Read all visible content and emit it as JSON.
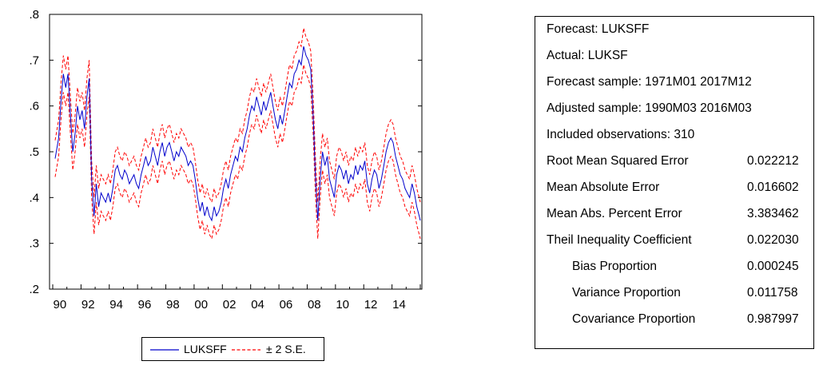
{
  "chart_data": {
    "type": "line",
    "xlim": [
      1990.0,
      2016.0
    ],
    "ylim": [
      0.2,
      0.8
    ],
    "y_ticks": [
      ".2",
      ".3",
      ".4",
      ".5",
      ".6",
      ".7",
      ".8"
    ],
    "x_ticks": [
      "90",
      "92",
      "94",
      "96",
      "98",
      "00",
      "02",
      "04",
      "06",
      "08",
      "10",
      "12",
      "14"
    ],
    "grid": false,
    "legend_position": "bottom",
    "series": [
      {
        "name": "LUKSFF",
        "color": "#0000cc",
        "style": "solid",
        "points": [
          [
            1990.17,
            0.485
          ],
          [
            1990.42,
            0.53
          ],
          [
            1990.58,
            0.61
          ],
          [
            1990.75,
            0.67
          ],
          [
            1990.92,
            0.64
          ],
          [
            1991.08,
            0.67
          ],
          [
            1991.25,
            0.58
          ],
          [
            1991.42,
            0.5
          ],
          [
            1991.58,
            0.54
          ],
          [
            1991.75,
            0.6
          ],
          [
            1991.92,
            0.57
          ],
          [
            1992.08,
            0.59
          ],
          [
            1992.25,
            0.55
          ],
          [
            1992.42,
            0.62
          ],
          [
            1992.58,
            0.66
          ],
          [
            1992.75,
            0.44
          ],
          [
            1992.92,
            0.36
          ],
          [
            1993.08,
            0.43
          ],
          [
            1993.25,
            0.38
          ],
          [
            1993.42,
            0.41
          ],
          [
            1993.58,
            0.4
          ],
          [
            1993.75,
            0.39
          ],
          [
            1993.92,
            0.41
          ],
          [
            1994.08,
            0.39
          ],
          [
            1994.25,
            0.42
          ],
          [
            1994.42,
            0.46
          ],
          [
            1994.58,
            0.47
          ],
          [
            1994.75,
            0.45
          ],
          [
            1994.92,
            0.44
          ],
          [
            1995.08,
            0.46
          ],
          [
            1995.25,
            0.45
          ],
          [
            1995.42,
            0.43
          ],
          [
            1995.58,
            0.44
          ],
          [
            1995.75,
            0.45
          ],
          [
            1995.92,
            0.43
          ],
          [
            1996.08,
            0.42
          ],
          [
            1996.25,
            0.45
          ],
          [
            1996.42,
            0.47
          ],
          [
            1996.58,
            0.49
          ],
          [
            1996.75,
            0.47
          ],
          [
            1996.92,
            0.48
          ],
          [
            1997.08,
            0.51
          ],
          [
            1997.25,
            0.49
          ],
          [
            1997.42,
            0.47
          ],
          [
            1997.58,
            0.5
          ],
          [
            1997.75,
            0.52
          ],
          [
            1997.92,
            0.49
          ],
          [
            1998.08,
            0.51
          ],
          [
            1998.25,
            0.52
          ],
          [
            1998.42,
            0.5
          ],
          [
            1998.58,
            0.48
          ],
          [
            1998.75,
            0.5
          ],
          [
            1998.92,
            0.49
          ],
          [
            1999.08,
            0.51
          ],
          [
            1999.25,
            0.5
          ],
          [
            1999.42,
            0.49
          ],
          [
            1999.58,
            0.47
          ],
          [
            1999.75,
            0.48
          ],
          [
            1999.92,
            0.47
          ],
          [
            2000.08,
            0.44
          ],
          [
            2000.25,
            0.4
          ],
          [
            2000.42,
            0.37
          ],
          [
            2000.58,
            0.39
          ],
          [
            2000.75,
            0.36
          ],
          [
            2000.92,
            0.38
          ],
          [
            2001.08,
            0.36
          ],
          [
            2001.25,
            0.35
          ],
          [
            2001.42,
            0.38
          ],
          [
            2001.58,
            0.36
          ],
          [
            2001.75,
            0.37
          ],
          [
            2001.92,
            0.39
          ],
          [
            2002.08,
            0.42
          ],
          [
            2002.25,
            0.44
          ],
          [
            2002.42,
            0.42
          ],
          [
            2002.58,
            0.45
          ],
          [
            2002.75,
            0.47
          ],
          [
            2002.92,
            0.49
          ],
          [
            2003.08,
            0.48
          ],
          [
            2003.25,
            0.51
          ],
          [
            2003.42,
            0.5
          ],
          [
            2003.58,
            0.53
          ],
          [
            2003.75,
            0.55
          ],
          [
            2003.92,
            0.58
          ],
          [
            2004.08,
            0.6
          ],
          [
            2004.25,
            0.59
          ],
          [
            2004.42,
            0.62
          ],
          [
            2004.58,
            0.6
          ],
          [
            2004.75,
            0.58
          ],
          [
            2004.92,
            0.61
          ],
          [
            2005.08,
            0.59
          ],
          [
            2005.25,
            0.61
          ],
          [
            2005.42,
            0.63
          ],
          [
            2005.58,
            0.6
          ],
          [
            2005.75,
            0.57
          ],
          [
            2005.92,
            0.55
          ],
          [
            2006.08,
            0.58
          ],
          [
            2006.25,
            0.56
          ],
          [
            2006.42,
            0.59
          ],
          [
            2006.58,
            0.62
          ],
          [
            2006.75,
            0.65
          ],
          [
            2006.92,
            0.64
          ],
          [
            2007.08,
            0.67
          ],
          [
            2007.25,
            0.68
          ],
          [
            2007.42,
            0.7
          ],
          [
            2007.58,
            0.69
          ],
          [
            2007.75,
            0.73
          ],
          [
            2007.92,
            0.71
          ],
          [
            2008.08,
            0.7
          ],
          [
            2008.25,
            0.68
          ],
          [
            2008.42,
            0.58
          ],
          [
            2008.58,
            0.45
          ],
          [
            2008.75,
            0.35
          ],
          [
            2008.92,
            0.44
          ],
          [
            2009.08,
            0.5
          ],
          [
            2009.25,
            0.47
          ],
          [
            2009.42,
            0.49
          ],
          [
            2009.58,
            0.44
          ],
          [
            2009.75,
            0.42
          ],
          [
            2009.92,
            0.4
          ],
          [
            2010.08,
            0.45
          ],
          [
            2010.25,
            0.47
          ],
          [
            2010.42,
            0.46
          ],
          [
            2010.58,
            0.44
          ],
          [
            2010.75,
            0.46
          ],
          [
            2010.92,
            0.43
          ],
          [
            2011.08,
            0.45
          ],
          [
            2011.25,
            0.44
          ],
          [
            2011.42,
            0.47
          ],
          [
            2011.58,
            0.45
          ],
          [
            2011.75,
            0.47
          ],
          [
            2011.92,
            0.46
          ],
          [
            2012.08,
            0.48
          ],
          [
            2012.25,
            0.43
          ],
          [
            2012.42,
            0.41
          ],
          [
            2012.58,
            0.44
          ],
          [
            2012.75,
            0.46
          ],
          [
            2012.92,
            0.45
          ],
          [
            2013.08,
            0.42
          ],
          [
            2013.25,
            0.44
          ],
          [
            2013.42,
            0.47
          ],
          [
            2013.58,
            0.5
          ],
          [
            2013.75,
            0.52
          ],
          [
            2013.92,
            0.53
          ],
          [
            2014.08,
            0.52
          ],
          [
            2014.25,
            0.49
          ],
          [
            2014.42,
            0.47
          ],
          [
            2014.58,
            0.45
          ],
          [
            2014.75,
            0.44
          ],
          [
            2014.92,
            0.42
          ],
          [
            2015.08,
            0.41
          ],
          [
            2015.25,
            0.4
          ],
          [
            2015.42,
            0.43
          ],
          [
            2015.58,
            0.41
          ],
          [
            2015.75,
            0.38
          ],
          [
            2015.92,
            0.36
          ],
          [
            2016.0,
            0.35
          ]
        ]
      },
      {
        "name": "± 2 S.E.",
        "color": "#ff0000",
        "style": "dashed",
        "band_half_width": 0.04
      }
    ]
  },
  "legend": {
    "forecast_label": "LUKSFF",
    "band_label": "± 2 S.E."
  },
  "stats": {
    "header_lines": [
      "Forecast: LUKSFF",
      "Actual: LUKSF",
      "Forecast sample: 1971M01 2017M12",
      "Adjusted sample: 1990M03 2016M03",
      "Included observations: 310"
    ],
    "rows": [
      {
        "label": "Root Mean Squared Error",
        "value": "0.022212"
      },
      {
        "label": "Mean Absolute Error",
        "value": "0.016602"
      },
      {
        "label": "Mean Abs. Percent Error",
        "value": "3.383462"
      },
      {
        "label": "Theil Inequality Coefficient",
        "value": "0.022030"
      },
      {
        "label": "Bias Proportion",
        "value": "0.000245"
      },
      {
        "label": "Variance Proportion",
        "value": "0.011758"
      },
      {
        "label": "Covariance Proportion",
        "value": "0.987997"
      }
    ]
  }
}
